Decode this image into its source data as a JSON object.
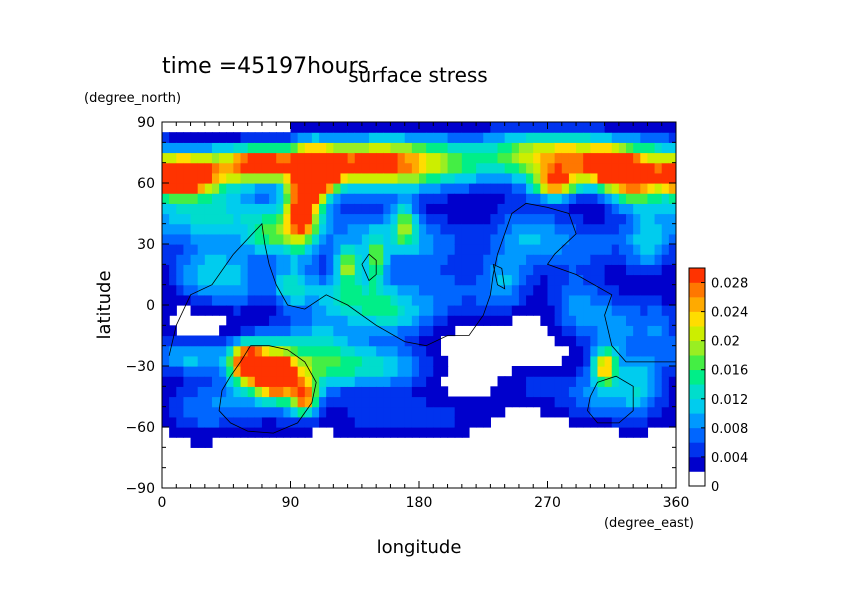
{
  "chart_data": {
    "type": "heatmap",
    "time_label": "time =45197hours",
    "title": "surface stress",
    "xlabel": "longitude",
    "ylabel": "latitude",
    "x_unit": "(degree_east)",
    "y_unit": "(degree_north)",
    "xlim": [
      0,
      360
    ],
    "ylim": [
      -90,
      90
    ],
    "x_ticks": [
      0,
      90,
      180,
      270,
      360
    ],
    "x_tick_labels": [
      "0",
      "90",
      "180",
      "270",
      "360"
    ],
    "y_ticks": [
      -90,
      -60,
      -30,
      0,
      30,
      60,
      90
    ],
    "y_tick_labels": [
      "−90",
      "−60",
      "−30",
      "0",
      "30",
      "60",
      "90"
    ],
    "colorbar": {
      "levels": [
        0,
        0.002,
        0.004,
        0.006,
        0.008,
        0.01,
        0.012,
        0.014,
        0.016,
        0.018,
        0.02,
        0.022,
        0.024,
        0.026,
        0.028,
        0.03
      ],
      "tick_values": [
        0,
        0.004,
        0.008,
        0.012,
        0.016,
        0.02,
        0.024,
        0.028
      ],
      "tick_labels": [
        "0",
        "0.004",
        "0.008",
        "0.012",
        "0.016",
        "0.02",
        "0.024",
        "0.028"
      ],
      "colors": [
        "#ffffff",
        "#0000cc",
        "#0033ee",
        "#0066ff",
        "#0099ff",
        "#00ccee",
        "#00ddcc",
        "#00ee88",
        "#44ee44",
        "#99ee22",
        "#ccee00",
        "#ffdd00",
        "#ffaa00",
        "#ff7700",
        "#ff3300"
      ]
    },
    "blobs": [
      {
        "lon": 10,
        "lat": 63,
        "value": 0.03,
        "sx": 14,
        "sy": 6
      },
      {
        "lon": 30,
        "lat": 67,
        "value": 0.02,
        "sx": 22,
        "sy": 8
      },
      {
        "lon": 70,
        "lat": 70,
        "value": 0.026,
        "sx": 16,
        "sy": 6
      },
      {
        "lon": 140,
        "lat": 70,
        "value": 0.024,
        "sx": 36,
        "sy": 8
      },
      {
        "lon": 100,
        "lat": 55,
        "value": 0.022,
        "sx": 9,
        "sy": 14
      },
      {
        "lon": 95,
        "lat": 40,
        "value": 0.014,
        "sx": 8,
        "sy": 10
      },
      {
        "lon": 110,
        "lat": 65,
        "value": 0.026,
        "sx": 10,
        "sy": 8
      },
      {
        "lon": 190,
        "lat": 70,
        "value": 0.012,
        "sx": 40,
        "sy": 10
      },
      {
        "lon": 265,
        "lat": 75,
        "value": 0.014,
        "sx": 30,
        "sy": 8
      },
      {
        "lon": 300,
        "lat": 70,
        "value": 0.018,
        "sx": 28,
        "sy": 9
      },
      {
        "lon": 315,
        "lat": 68,
        "value": 0.022,
        "sx": 10,
        "sy": 6
      },
      {
        "lon": 330,
        "lat": 60,
        "value": 0.018,
        "sx": 12,
        "sy": 8
      },
      {
        "lon": 345,
        "lat": 70,
        "value": 0.01,
        "sx": 14,
        "sy": 10
      },
      {
        "lon": 275,
        "lat": 60,
        "value": 0.02,
        "sx": 10,
        "sy": 5
      },
      {
        "lon": 20,
        "lat": 45,
        "value": 0.01,
        "sx": 30,
        "sy": 10
      },
      {
        "lon": 60,
        "lat": 40,
        "value": 0.006,
        "sx": 26,
        "sy": 12
      },
      {
        "lon": 75,
        "lat": 35,
        "value": 0.01,
        "sx": 10,
        "sy": 8
      },
      {
        "lon": 140,
        "lat": 35,
        "value": 0.008,
        "sx": 30,
        "sy": 12
      },
      {
        "lon": 130,
        "lat": 20,
        "value": 0.014,
        "sx": 6,
        "sy": 6
      },
      {
        "lon": 150,
        "lat": 22,
        "value": 0.012,
        "sx": 5,
        "sy": 8
      },
      {
        "lon": 170,
        "lat": 40,
        "value": 0.012,
        "sx": 6,
        "sy": 8
      },
      {
        "lon": 190,
        "lat": 30,
        "value": 0.006,
        "sx": 24,
        "sy": 10
      },
      {
        "lon": 255,
        "lat": 35,
        "value": 0.008,
        "sx": 20,
        "sy": 12
      },
      {
        "lon": 300,
        "lat": 30,
        "value": 0.006,
        "sx": 30,
        "sy": 10
      },
      {
        "lon": 340,
        "lat": 30,
        "value": 0.008,
        "sx": 10,
        "sy": 10
      },
      {
        "lon": 240,
        "lat": 10,
        "value": 0.008,
        "sx": 12,
        "sy": 10
      },
      {
        "lon": 200,
        "lat": 5,
        "value": 0.006,
        "sx": 24,
        "sy": 10
      },
      {
        "lon": 30,
        "lat": 15,
        "value": 0.01,
        "sx": 18,
        "sy": 10
      },
      {
        "lon": 55,
        "lat": 10,
        "value": 0.006,
        "sx": 14,
        "sy": 10
      },
      {
        "lon": 90,
        "lat": 10,
        "value": 0.01,
        "sx": 10,
        "sy": 8
      },
      {
        "lon": 130,
        "lat": 5,
        "value": 0.012,
        "sx": 24,
        "sy": 8
      },
      {
        "lon": 160,
        "lat": -5,
        "value": 0.01,
        "sx": 20,
        "sy": 8
      },
      {
        "lon": 110,
        "lat": -15,
        "value": 0.008,
        "sx": 20,
        "sy": 8
      },
      {
        "lon": 20,
        "lat": -25,
        "value": 0.01,
        "sx": 18,
        "sy": 6
      },
      {
        "lon": 60,
        "lat": -28,
        "value": 0.024,
        "sx": 8,
        "sy": 6
      },
      {
        "lon": 80,
        "lat": -35,
        "value": 0.026,
        "sx": 8,
        "sy": 6
      },
      {
        "lon": 70,
        "lat": -30,
        "value": 0.018,
        "sx": 16,
        "sy": 10
      },
      {
        "lon": 100,
        "lat": -45,
        "value": 0.02,
        "sx": 6,
        "sy": 6
      },
      {
        "lon": 90,
        "lat": -38,
        "value": 0.01,
        "sx": 16,
        "sy": 12
      },
      {
        "lon": 45,
        "lat": -50,
        "value": 0.006,
        "sx": 20,
        "sy": 10
      },
      {
        "lon": 120,
        "lat": -30,
        "value": 0.012,
        "sx": 20,
        "sy": 8
      },
      {
        "lon": 160,
        "lat": -30,
        "value": 0.01,
        "sx": 22,
        "sy": 8
      },
      {
        "lon": 170,
        "lat": -55,
        "value": 0.006,
        "sx": 40,
        "sy": 8
      },
      {
        "lon": 20,
        "lat": -50,
        "value": 0.004,
        "sx": 16,
        "sy": 12
      },
      {
        "lon": 290,
        "lat": 0,
        "value": 0.008,
        "sx": 14,
        "sy": 12
      },
      {
        "lon": 320,
        "lat": -10,
        "value": 0.008,
        "sx": 16,
        "sy": 12
      },
      {
        "lon": 310,
        "lat": -30,
        "value": 0.02,
        "sx": 6,
        "sy": 6
      },
      {
        "lon": 305,
        "lat": -45,
        "value": 0.008,
        "sx": 18,
        "sy": 10
      },
      {
        "lon": 335,
        "lat": -40,
        "value": 0.01,
        "sx": 12,
        "sy": 12
      },
      {
        "lon": 350,
        "lat": -10,
        "value": 0.006,
        "sx": 10,
        "sy": 10
      },
      {
        "lon": 260,
        "lat": -40,
        "value": 0.004,
        "sx": 20,
        "sy": 8
      }
    ],
    "contours": [
      [
        [
          5,
          -25
        ],
        [
          10,
          -10
        ],
        [
          20,
          5
        ],
        [
          35,
          10
        ],
        [
          50,
          25
        ],
        [
          70,
          40
        ],
        [
          72,
          30
        ],
        [
          75,
          20
        ],
        [
          80,
          10
        ],
        [
          88,
          0
        ],
        [
          100,
          -2
        ],
        [
          115,
          5
        ],
        [
          130,
          0
        ],
        [
          150,
          -10
        ],
        [
          170,
          -18
        ],
        [
          185,
          -20
        ],
        [
          200,
          -15
        ],
        [
          215,
          -15
        ],
        [
          225,
          -5
        ],
        [
          230,
          5
        ],
        [
          232,
          15
        ],
        [
          235,
          25
        ],
        [
          240,
          35
        ],
        [
          245,
          45
        ],
        [
          255,
          50
        ],
        [
          270,
          48
        ],
        [
          285,
          45
        ],
        [
          290,
          35
        ],
        [
          275,
          25
        ],
        [
          270,
          20
        ],
        [
          290,
          15
        ],
        [
          315,
          5
        ],
        [
          310,
          -5
        ],
        [
          315,
          -20
        ],
        [
          325,
          -28
        ],
        [
          345,
          -28
        ],
        [
          360,
          -28
        ]
      ],
      [
        [
          62,
          -20
        ],
        [
          55,
          -28
        ],
        [
          48,
          -35
        ],
        [
          42,
          -42
        ],
        [
          40,
          -52
        ],
        [
          48,
          -58
        ],
        [
          60,
          -62
        ],
        [
          78,
          -63
        ],
        [
          95,
          -58
        ],
        [
          105,
          -48
        ],
        [
          108,
          -38
        ],
        [
          100,
          -28
        ],
        [
          88,
          -22
        ],
        [
          75,
          -20
        ],
        [
          62,
          -20
        ]
      ],
      [
        [
          300,
          -45
        ],
        [
          305,
          -38
        ],
        [
          318,
          -35
        ],
        [
          330,
          -40
        ],
        [
          330,
          -52
        ],
        [
          320,
          -58
        ],
        [
          305,
          -58
        ],
        [
          298,
          -52
        ],
        [
          300,
          -45
        ]
      ],
      [
        [
          140,
          20
        ],
        [
          145,
          25
        ],
        [
          150,
          22
        ],
        [
          150,
          15
        ],
        [
          145,
          12
        ],
        [
          140,
          20
        ]
      ],
      [
        [
          232,
          20
        ],
        [
          235,
          10
        ],
        [
          240,
          8
        ],
        [
          238,
          18
        ],
        [
          232,
          20
        ]
      ]
    ]
  }
}
